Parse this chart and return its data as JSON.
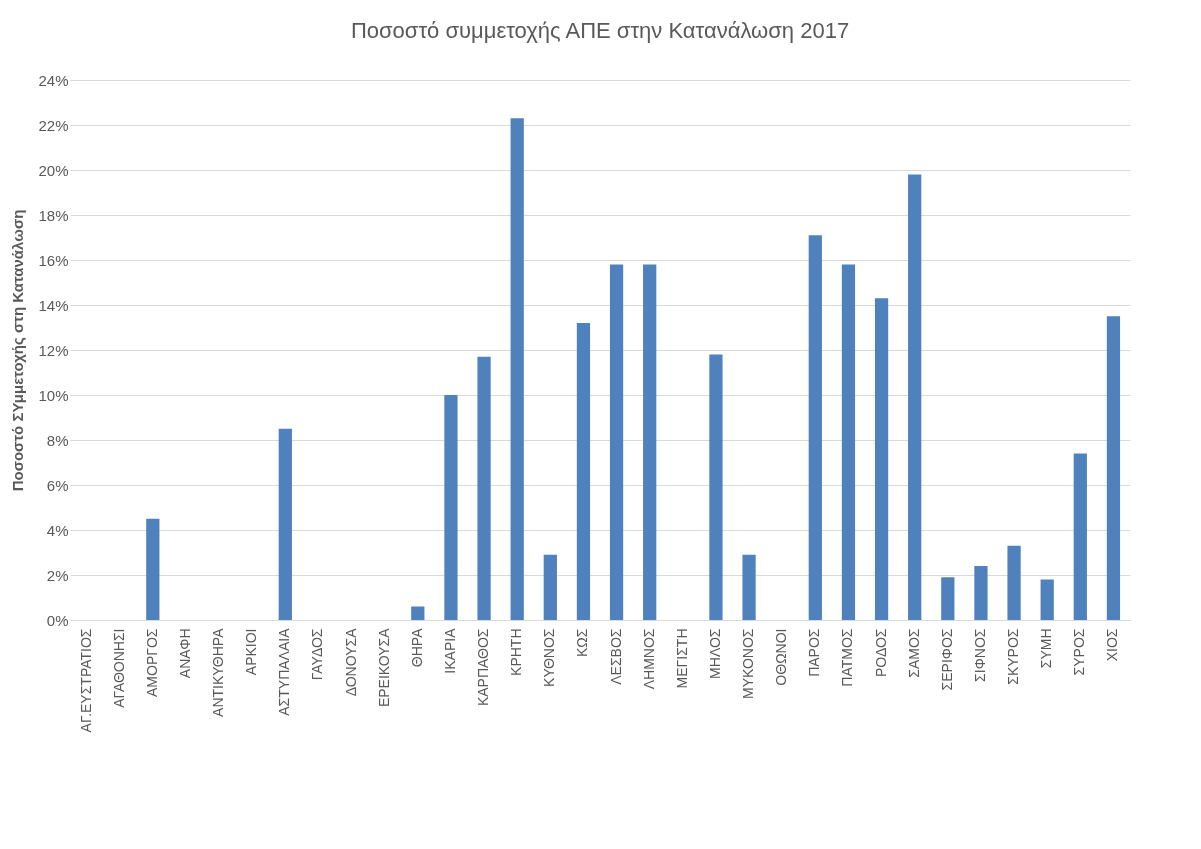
{
  "chart_data": {
    "type": "bar",
    "title": "Ποσοστό συμμετοχής ΑΠΕ στην Κατανάλωση 2017",
    "ylabel": "Ποσοστό ΣΥμμετοχής στη Κατανάλωση",
    "categories": [
      "ΑΓ.ΕΥΣΤΡΑΤΙΟΣ",
      "ΑΓΑΘΟΝΗΣΙ",
      "ΑΜΟΡΓΟΣ",
      "ΑΝΑΦΗ",
      "ΑΝΤΙΚΥΘΗΡΑ",
      "ΑΡΚΙΟΙ",
      "ΑΣΤΥΠΑΛΑΙΑ",
      "ΓΑΥΔΟΣ",
      "ΔΟΝΟΥΣΑ",
      "ΕΡΕΙΚΟΥΣΑ",
      "ΘΗΡΑ",
      "ΙΚΑΡΙΑ",
      "ΚΑΡΠΑΘΟΣ",
      "ΚΡΗΤΗ",
      "ΚΥΘΝΟΣ",
      "ΚΩΣ",
      "ΛΕΣΒΟΣ",
      "ΛΗΜΝΟΣ",
      "ΜΕΓΙΣΤΗ",
      "ΜΗΛΟΣ",
      "ΜΥΚΟΝΟΣ",
      "ΟΘΩΝΟΙ",
      "ΠΑΡΟΣ",
      "ΠΑΤΜΟΣ",
      "ΡΟΔΟΣ",
      "ΣΑΜΟΣ",
      "ΣΕΡΙΦΟΣ",
      "ΣΙΦΝΟΣ",
      "ΣΚΥΡΟΣ",
      "ΣΥΜΗ",
      "ΣΥΡΟΣ",
      "ΧΙΟΣ"
    ],
    "values": [
      0,
      0,
      4.5,
      0,
      0,
      0,
      8.5,
      0,
      0,
      0,
      0.6,
      10.0,
      11.7,
      22.3,
      2.9,
      13.2,
      15.8,
      15.8,
      0,
      11.8,
      2.9,
      0,
      17.1,
      15.8,
      14.3,
      19.8,
      1.9,
      2.4,
      3.3,
      1.8,
      7.4,
      13.5
    ],
    "color": "#4f81bd",
    "ylim": [
      0,
      24
    ],
    "yticks": [
      {
        "value": 0,
        "label": "0%"
      },
      {
        "value": 2,
        "label": "2%"
      },
      {
        "value": 4,
        "label": "4%"
      },
      {
        "value": 6,
        "label": "6%"
      },
      {
        "value": 8,
        "label": "8%"
      },
      {
        "value": 10,
        "label": "10%"
      },
      {
        "value": 12,
        "label": "12%"
      },
      {
        "value": 14,
        "label": "14%"
      },
      {
        "value": 16,
        "label": "16%"
      },
      {
        "value": 18,
        "label": "18%"
      },
      {
        "value": 20,
        "label": "20%"
      },
      {
        "value": 22,
        "label": "22%"
      },
      {
        "value": 24,
        "label": "24%"
      }
    ],
    "grid": true
  }
}
